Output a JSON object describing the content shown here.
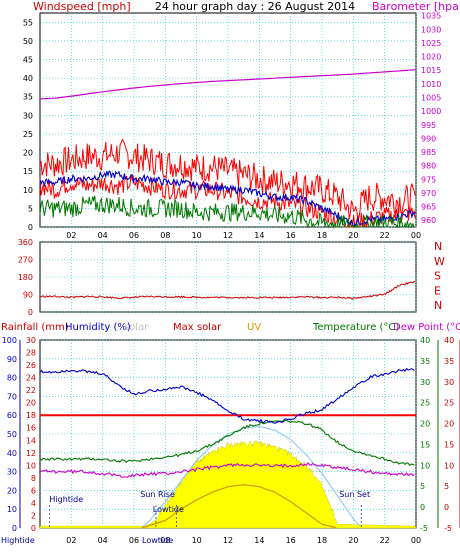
{
  "header": {
    "left": "Windspeed [mph]",
    "center": "24 hour graph day : 26 August 2014",
    "right": "Barometer [hpa]"
  },
  "colors": {
    "wind_left": "#cc0000",
    "baro": "#cc00cc",
    "rain": "#cc0000",
    "humidity": "#0000cc",
    "solar_header": "#c0c0c0",
    "maxsolar": "#cc0000",
    "uv": "#cc9900",
    "temperature": "#007700",
    "dewpoint": "#cc00cc",
    "solar_fill": "#ffff00",
    "grid": "#00cccc"
  },
  "chart_data": [
    {
      "type": "line",
      "panel": "wind_baro",
      "x_ticks": [
        "02",
        "04",
        "06",
        "08",
        "10",
        "12",
        "14",
        "16",
        "18",
        "20",
        "22",
        "00"
      ],
      "y_left_ticks": [
        "0",
        "5",
        "10",
        "15",
        "20",
        "25",
        "30",
        "35",
        "40",
        "45",
        "50",
        "55"
      ],
      "y_right_ticks": [
        "960",
        "965",
        "970",
        "975",
        "980",
        "985",
        "990",
        "995",
        "1000",
        "1005",
        "1010",
        "1015",
        "1020",
        "1025",
        "1030",
        "1035"
      ],
      "ylim_left": [
        0,
        57.5
      ],
      "ylim_right": [
        957.5,
        1036
      ],
      "series": [
        {
          "kind": "barometer",
          "axis": "right",
          "color": "#cc00cc",
          "x": [
            0,
            1,
            2,
            3,
            4,
            5,
            6,
            7,
            8,
            9,
            10,
            11,
            12,
            13,
            14,
            15,
            16,
            17,
            18,
            19,
            20,
            21,
            22,
            23,
            24
          ],
          "values": [
            1004.5,
            1004.8,
            1005.5,
            1006.3,
            1007.1,
            1007.8,
            1008.5,
            1009.1,
            1009.6,
            1010.1,
            1010.5,
            1010.9,
            1011.2,
            1011.5,
            1011.8,
            1012.1,
            1012.4,
            1012.7,
            1013.0,
            1013.3,
            1013.6,
            1014.0,
            1014.4,
            1014.8,
            1015.2
          ]
        },
        {
          "kind": "gust",
          "axis": "left",
          "color": "#ff0000",
          "x": [
            0,
            1,
            2,
            3,
            4,
            5,
            6,
            7,
            8,
            9,
            10,
            11,
            12,
            13,
            14,
            15,
            16,
            17,
            18,
            19,
            20,
            21,
            22,
            23,
            24
          ],
          "values": [
            17,
            17,
            18,
            19,
            19,
            20,
            19,
            18,
            17,
            17,
            16,
            16,
            15,
            14,
            13,
            12,
            12,
            11,
            10,
            8,
            4,
            8,
            8,
            7,
            8
          ]
        },
        {
          "kind": "gust_low",
          "axis": "left",
          "color": "#ff0000",
          "x": [
            0,
            1,
            2,
            3,
            4,
            5,
            6,
            7,
            8,
            9,
            10,
            11,
            12,
            13,
            14,
            15,
            16,
            17,
            18,
            19,
            20,
            21,
            22,
            23,
            24
          ],
          "values": [
            11,
            10,
            12,
            11,
            12,
            11,
            12,
            11,
            10,
            10,
            10,
            10,
            9,
            8,
            7,
            7,
            6,
            5,
            4,
            2,
            1,
            2,
            3,
            3,
            4
          ]
        },
        {
          "kind": "average",
          "axis": "left",
          "color": "#0000cc",
          "x": [
            0,
            1,
            2,
            3,
            4,
            5,
            6,
            7,
            8,
            9,
            10,
            11,
            12,
            13,
            14,
            15,
            16,
            17,
            18,
            19,
            20,
            21,
            22,
            23,
            24
          ],
          "values": [
            12,
            12,
            13,
            13,
            14,
            14,
            13,
            13,
            12,
            12,
            11,
            11,
            10,
            10,
            9,
            8,
            8,
            7,
            5,
            3,
            1,
            2,
            2,
            3,
            4
          ]
        },
        {
          "kind": "wind",
          "axis": "left",
          "color": "#007700",
          "x": [
            0,
            1,
            2,
            3,
            4,
            5,
            6,
            7,
            8,
            9,
            10,
            11,
            12,
            13,
            14,
            15,
            16,
            17,
            18,
            19,
            20,
            21,
            22,
            23,
            24
          ],
          "values": [
            5,
            5,
            5,
            6,
            6,
            6,
            5,
            5,
            5,
            5,
            4,
            4,
            4,
            4,
            4,
            3,
            3,
            2,
            1,
            1,
            0,
            1,
            1,
            1,
            1
          ]
        }
      ]
    },
    {
      "type": "line",
      "panel": "wind_direction",
      "y_left_ticks": [
        "0",
        "90",
        "180",
        "270",
        "360"
      ],
      "y_right_ticks": [
        "N",
        "E",
        "S",
        "W",
        "N"
      ],
      "ylim": [
        0,
        360
      ],
      "series": [
        {
          "kind": "direction",
          "color": "#cc0000",
          "x": [
            0,
            1,
            2,
            3,
            4,
            5,
            6,
            7,
            8,
            9,
            10,
            11,
            12,
            13,
            14,
            15,
            16,
            17,
            18,
            19,
            20,
            21,
            22,
            23,
            24
          ],
          "values": [
            80,
            80,
            75,
            80,
            78,
            72,
            75,
            80,
            78,
            78,
            76,
            75,
            75,
            74,
            75,
            74,
            76,
            78,
            74,
            76,
            70,
            80,
            90,
            140,
            155
          ]
        }
      ]
    },
    {
      "type": "area",
      "panel": "climate",
      "headers": [
        "Rainfall (mm)",
        "Humidity (%)",
        "solar",
        "Max solar",
        "UV",
        "Temperature (°C)",
        "Dew Point (°C)"
      ],
      "y_left1_ticks": [
        "0",
        "10",
        "20",
        "30",
        "40",
        "50",
        "60",
        "70",
        "80",
        "90",
        "100"
      ],
      "y_left2_ticks": [
        "0",
        "2",
        "4",
        "6",
        "8",
        "10",
        "12",
        "14",
        "16",
        "18",
        "20",
        "22",
        "24",
        "26",
        "28",
        "30"
      ],
      "y_right1_ticks": [
        "-5",
        "0",
        "5",
        "10",
        "15",
        "20",
        "25",
        "30",
        "35",
        "40"
      ],
      "y_right2_ticks": [
        "-5",
        "0",
        "5",
        "10",
        "15",
        "20",
        "25",
        "30",
        "35",
        "40"
      ],
      "x_ticks": [
        "02",
        "04",
        "06",
        "08",
        "10",
        "12",
        "14",
        "16",
        "18",
        "20",
        "22",
        "00"
      ],
      "annotations": [
        "Hightide",
        "Sun Rise",
        "Lowtide",
        "Sun Set",
        "Hightide",
        "Lowtide"
      ],
      "series": [
        {
          "kind": "humidity",
          "color": "#0000cc",
          "axis": "pct",
          "x": [
            0,
            1,
            2,
            3,
            4,
            5,
            6,
            7,
            8,
            9,
            10,
            11,
            12,
            13,
            14,
            15,
            16,
            17,
            18,
            19,
            20,
            21,
            22,
            23,
            24
          ],
          "values": [
            83,
            83,
            84,
            83,
            82,
            76,
            71,
            73,
            74,
            75,
            72,
            68,
            62,
            58,
            57,
            56,
            58,
            61,
            63,
            69,
            75,
            80,
            82,
            84,
            84
          ]
        },
        {
          "kind": "temperature",
          "color": "#007700",
          "axis": "temp",
          "x": [
            0,
            1,
            2,
            3,
            4,
            5,
            6,
            7,
            8,
            9,
            10,
            11,
            12,
            13,
            14,
            15,
            16,
            17,
            18,
            19,
            20,
            21,
            22,
            23,
            24
          ],
          "values": [
            11.5,
            11.5,
            11.5,
            11.5,
            11.5,
            11,
            11,
            11.5,
            12,
            12.5,
            13.5,
            15,
            17,
            19,
            20,
            20.5,
            20.5,
            20,
            18.5,
            15.5,
            13.5,
            12.5,
            11.5,
            10.5,
            10
          ]
        },
        {
          "kind": "dewpoint",
          "color": "#cc00cc",
          "axis": "temp",
          "x": [
            0,
            1,
            2,
            3,
            4,
            5,
            6,
            7,
            8,
            9,
            10,
            11,
            12,
            13,
            14,
            15,
            16,
            17,
            18,
            19,
            20,
            21,
            22,
            23,
            24
          ],
          "values": [
            8.5,
            8.5,
            8.5,
            8.5,
            8,
            7.5,
            7.5,
            8,
            8,
            8.5,
            9,
            9.5,
            10,
            10.2,
            10,
            9.8,
            10,
            10.3,
            10,
            9.5,
            9,
            8.5,
            8,
            8,
            7.5
          ]
        },
        {
          "kind": "solar",
          "color": "#ffff00",
          "axis": "pct",
          "x": [
            0,
            6.5,
            7,
            7.5,
            8,
            8.5,
            9,
            9.5,
            10,
            11,
            12,
            13,
            14,
            15,
            16,
            17,
            17.5,
            18,
            18.5,
            19,
            24
          ],
          "values": [
            1,
            1,
            2,
            5,
            12,
            18,
            24,
            30,
            35,
            40,
            44,
            45,
            45,
            43,
            39,
            33,
            28,
            22,
            12,
            2,
            1
          ]
        },
        {
          "kind": "max_solar",
          "color": "#b0b0b0",
          "axis": "pct",
          "x": [
            6.5,
            7,
            8,
            9,
            10,
            11,
            12,
            13,
            14,
            15,
            16,
            17,
            18,
            19,
            20,
            20.5
          ],
          "values": [
            0,
            4,
            14,
            25,
            36,
            44,
            50,
            53,
            54,
            52,
            47,
            39,
            29,
            17,
            5,
            0
          ]
        },
        {
          "kind": "rain_line",
          "color": "#ff0000",
          "axis": "pct",
          "x": [
            0,
            24
          ],
          "values": [
            60,
            60
          ]
        },
        {
          "kind": "uv",
          "color": "#cc9900",
          "axis": "pct",
          "x": [
            6.5,
            8,
            9,
            10,
            11,
            12,
            13,
            14,
            15,
            16,
            17,
            18,
            19
          ],
          "values": [
            0,
            4,
            10,
            15,
            19,
            22,
            23,
            22,
            19,
            14,
            8,
            2,
            0
          ]
        }
      ]
    }
  ]
}
